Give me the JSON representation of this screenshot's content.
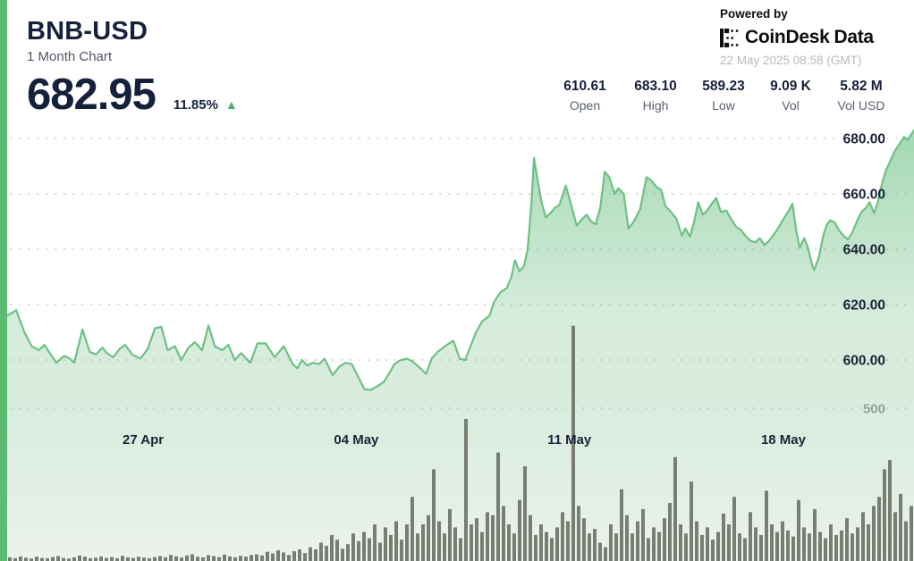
{
  "header": {
    "symbol": "BNB-USD",
    "subtitle": "1 Month Chart",
    "price": "682.95",
    "change_pct": "11.85%",
    "change_direction": "up",
    "up_arrow": "▲"
  },
  "branding": {
    "powered_by": "Powered by",
    "logo_icon": "coindesk-logo-icon",
    "logo_text_1": "CoinDesk",
    "logo_text_2": "Data",
    "timestamp": "22 May 2025 08:58 (GMT)"
  },
  "stats": [
    {
      "value": "610.61",
      "label": "Open"
    },
    {
      "value": "683.10",
      "label": "High"
    },
    {
      "value": "589.23",
      "label": "Low"
    },
    {
      "value": "9.09 K",
      "label": "Vol"
    },
    {
      "value": "5.82 M",
      "label": "Vol USD"
    }
  ],
  "colors": {
    "accent_green": "#5cbb72",
    "line_green": "#6fc083",
    "area_top": "#8ccf9f",
    "area_bottom": "#ecf2ed",
    "volume_bar": "#6e7467",
    "grid_dot": "#9aa29c",
    "up_green": "#4caf6e",
    "text_dark": "#15203a",
    "text_light": "#b6b9bf"
  },
  "chart_data": {
    "type": "area",
    "title": "BNB-USD 1 Month Chart",
    "legend": "none",
    "grid": "dotted-horizontal",
    "price_axis": {
      "side": "right",
      "ticks": [
        {
          "value": 680,
          "label": "680.00"
        },
        {
          "value": 660,
          "label": "660.00"
        },
        {
          "value": 640,
          "label": "640.00"
        },
        {
          "value": 620,
          "label": "620.00"
        },
        {
          "value": 600,
          "label": "600.00"
        }
      ]
    },
    "volume_axis": {
      "ticks": [
        {
          "value": 500,
          "label": "500"
        }
      ]
    },
    "x_axis": {
      "ticks": [
        {
          "t": 0.15,
          "label": "27 Apr"
        },
        {
          "t": 0.385,
          "label": "04 May"
        },
        {
          "t": 0.62,
          "label": "11 May"
        },
        {
          "t": 0.856,
          "label": "18 May"
        }
      ]
    },
    "price_series": [
      [
        0,
        616
      ],
      [
        0.01,
        618
      ],
      [
        0.019,
        610
      ],
      [
        0.027,
        605
      ],
      [
        0.035,
        603.5
      ],
      [
        0.041,
        605.5
      ],
      [
        0.048,
        602
      ],
      [
        0.054,
        599
      ],
      [
        0.063,
        601.5
      ],
      [
        0.069,
        600.5
      ],
      [
        0.074,
        599
      ],
      [
        0.083,
        611
      ],
      [
        0.091,
        603
      ],
      [
        0.098,
        602
      ],
      [
        0.105,
        604.5
      ],
      [
        0.11,
        602.5
      ],
      [
        0.117,
        601
      ],
      [
        0.124,
        604
      ],
      [
        0.13,
        605.5
      ],
      [
        0.138,
        602
      ],
      [
        0.147,
        600.5
      ],
      [
        0.155,
        604
      ],
      [
        0.163,
        611.5
      ],
      [
        0.17,
        612
      ],
      [
        0.177,
        603.5
      ],
      [
        0.185,
        605
      ],
      [
        0.192,
        600
      ],
      [
        0.2,
        604.5
      ],
      [
        0.207,
        606.5
      ],
      [
        0.215,
        603.5
      ],
      [
        0.222,
        612.5
      ],
      [
        0.229,
        605
      ],
      [
        0.237,
        603.5
      ],
      [
        0.244,
        605.5
      ],
      [
        0.251,
        600
      ],
      [
        0.258,
        602.5
      ],
      [
        0.268,
        599
      ],
      [
        0.276,
        606
      ],
      [
        0.285,
        606
      ],
      [
        0.295,
        601
      ],
      [
        0.305,
        605
      ],
      [
        0.315,
        598.5
      ],
      [
        0.32,
        597
      ],
      [
        0.325,
        600
      ],
      [
        0.331,
        598
      ],
      [
        0.337,
        599
      ],
      [
        0.344,
        598.5
      ],
      [
        0.35,
        600.5
      ],
      [
        0.359,
        594.5
      ],
      [
        0.366,
        597.5
      ],
      [
        0.373,
        599
      ],
      [
        0.38,
        598.5
      ],
      [
        0.387,
        594
      ],
      [
        0.394,
        589.5
      ],
      [
        0.401,
        589.2
      ],
      [
        0.408,
        590.5
      ],
      [
        0.415,
        592
      ],
      [
        0.421,
        595
      ],
      [
        0.427,
        598.5
      ],
      [
        0.434,
        600
      ],
      [
        0.441,
        600.5
      ],
      [
        0.447,
        599.5
      ],
      [
        0.454,
        597.5
      ],
      [
        0.462,
        595
      ],
      [
        0.468,
        600.5
      ],
      [
        0.475,
        603
      ],
      [
        0.485,
        605.5
      ],
      [
        0.492,
        607
      ],
      [
        0.499,
        600.5
      ],
      [
        0.505,
        600
      ],
      [
        0.511,
        605
      ],
      [
        0.517,
        610
      ],
      [
        0.524,
        614
      ],
      [
        0.532,
        616
      ],
      [
        0.537,
        621
      ],
      [
        0.544,
        624.5
      ],
      [
        0.551,
        626
      ],
      [
        0.556,
        630
      ],
      [
        0.56,
        636
      ],
      [
        0.565,
        632
      ],
      [
        0.57,
        634
      ],
      [
        0.574,
        640
      ],
      [
        0.578,
        656
      ],
      [
        0.581,
        673
      ],
      [
        0.585,
        665
      ],
      [
        0.589,
        657.5
      ],
      [
        0.594,
        651.5
      ],
      [
        0.599,
        653
      ],
      [
        0.604,
        655
      ],
      [
        0.609,
        656
      ],
      [
        0.616,
        663
      ],
      [
        0.622,
        656
      ],
      [
        0.628,
        648.5
      ],
      [
        0.633,
        650.5
      ],
      [
        0.639,
        652.5
      ],
      [
        0.644,
        650
      ],
      [
        0.649,
        649
      ],
      [
        0.654,
        655
      ],
      [
        0.659,
        668
      ],
      [
        0.664,
        666
      ],
      [
        0.67,
        660
      ],
      [
        0.674,
        662
      ],
      [
        0.68,
        660
      ],
      [
        0.685,
        647.5
      ],
      [
        0.691,
        650
      ],
      [
        0.698,
        654.5
      ],
      [
        0.705,
        666
      ],
      [
        0.71,
        665
      ],
      [
        0.716,
        662.5
      ],
      [
        0.721,
        661.5
      ],
      [
        0.726,
        655.5
      ],
      [
        0.732,
        653.5
      ],
      [
        0.738,
        651
      ],
      [
        0.744,
        645
      ],
      [
        0.748,
        647.5
      ],
      [
        0.753,
        644.5
      ],
      [
        0.758,
        650.5
      ],
      [
        0.762,
        657
      ],
      [
        0.767,
        652.5
      ],
      [
        0.772,
        654
      ],
      [
        0.777,
        656.5
      ],
      [
        0.782,
        658.5
      ],
      [
        0.787,
        653.5
      ],
      [
        0.793,
        654
      ],
      [
        0.799,
        650.5
      ],
      [
        0.804,
        648
      ],
      [
        0.809,
        647
      ],
      [
        0.815,
        644.5
      ],
      [
        0.82,
        643
      ],
      [
        0.825,
        642.5
      ],
      [
        0.83,
        644
      ],
      [
        0.835,
        641.5
      ],
      [
        0.84,
        643
      ],
      [
        0.846,
        645.5
      ],
      [
        0.851,
        648
      ],
      [
        0.857,
        651.5
      ],
      [
        0.862,
        654
      ],
      [
        0.866,
        656.5
      ],
      [
        0.87,
        647
      ],
      [
        0.874,
        640.5
      ],
      [
        0.879,
        644
      ],
      [
        0.883,
        640.5
      ],
      [
        0.888,
        634
      ],
      [
        0.89,
        632.5
      ],
      [
        0.895,
        637
      ],
      [
        0.9,
        645
      ],
      [
        0.904,
        649
      ],
      [
        0.908,
        650.5
      ],
      [
        0.913,
        649.5
      ],
      [
        0.917,
        647
      ],
      [
        0.922,
        645
      ],
      [
        0.927,
        643.5
      ],
      [
        0.932,
        646
      ],
      [
        0.937,
        650
      ],
      [
        0.942,
        653.5
      ],
      [
        0.947,
        655
      ],
      [
        0.951,
        657
      ],
      [
        0.956,
        653
      ],
      [
        0.96,
        657
      ],
      [
        0.965,
        664
      ],
      [
        0.969,
        668.5
      ],
      [
        0.974,
        672
      ],
      [
        0.979,
        675.5
      ],
      [
        0.984,
        678
      ],
      [
        0.989,
        680.5
      ],
      [
        0.993,
        679.5
      ],
      [
        0.997,
        681.5
      ],
      [
        1,
        683
      ]
    ],
    "volume_series_k": [
      12,
      9,
      15,
      11,
      8,
      14,
      10,
      9,
      13,
      16,
      10,
      8,
      12,
      18,
      14,
      9,
      11,
      15,
      10,
      13,
      9,
      17,
      12,
      10,
      14,
      11,
      9,
      13,
      16,
      12,
      20,
      15,
      11,
      18,
      22,
      14,
      12,
      19,
      16,
      13,
      21,
      15,
      12,
      17,
      14,
      20,
      22,
      18,
      30,
      25,
      35,
      28,
      20,
      32,
      38,
      26,
      45,
      38,
      60,
      50,
      85,
      70,
      40,
      55,
      90,
      65,
      95,
      75,
      120,
      60,
      110,
      85,
      130,
      70,
      120,
      210,
      90,
      120,
      150,
      300,
      130,
      90,
      170,
      110,
      75,
      465,
      120,
      140,
      95,
      160,
      150,
      355,
      180,
      120,
      90,
      200,
      310,
      150,
      85,
      120,
      95,
      75,
      110,
      160,
      130,
      770,
      180,
      140,
      90,
      105,
      60,
      45,
      120,
      90,
      235,
      150,
      90,
      130,
      170,
      75,
      110,
      95,
      140,
      190,
      340,
      120,
      90,
      260,
      130,
      85,
      110,
      70,
      95,
      155,
      120,
      210,
      90,
      75,
      160,
      110,
      85,
      230,
      120,
      95,
      130,
      100,
      80,
      200,
      110,
      90,
      170,
      95,
      75,
      120,
      85,
      100,
      140,
      90,
      110,
      160,
      120,
      180,
      210,
      300,
      330,
      160,
      220,
      130,
      180
    ]
  }
}
